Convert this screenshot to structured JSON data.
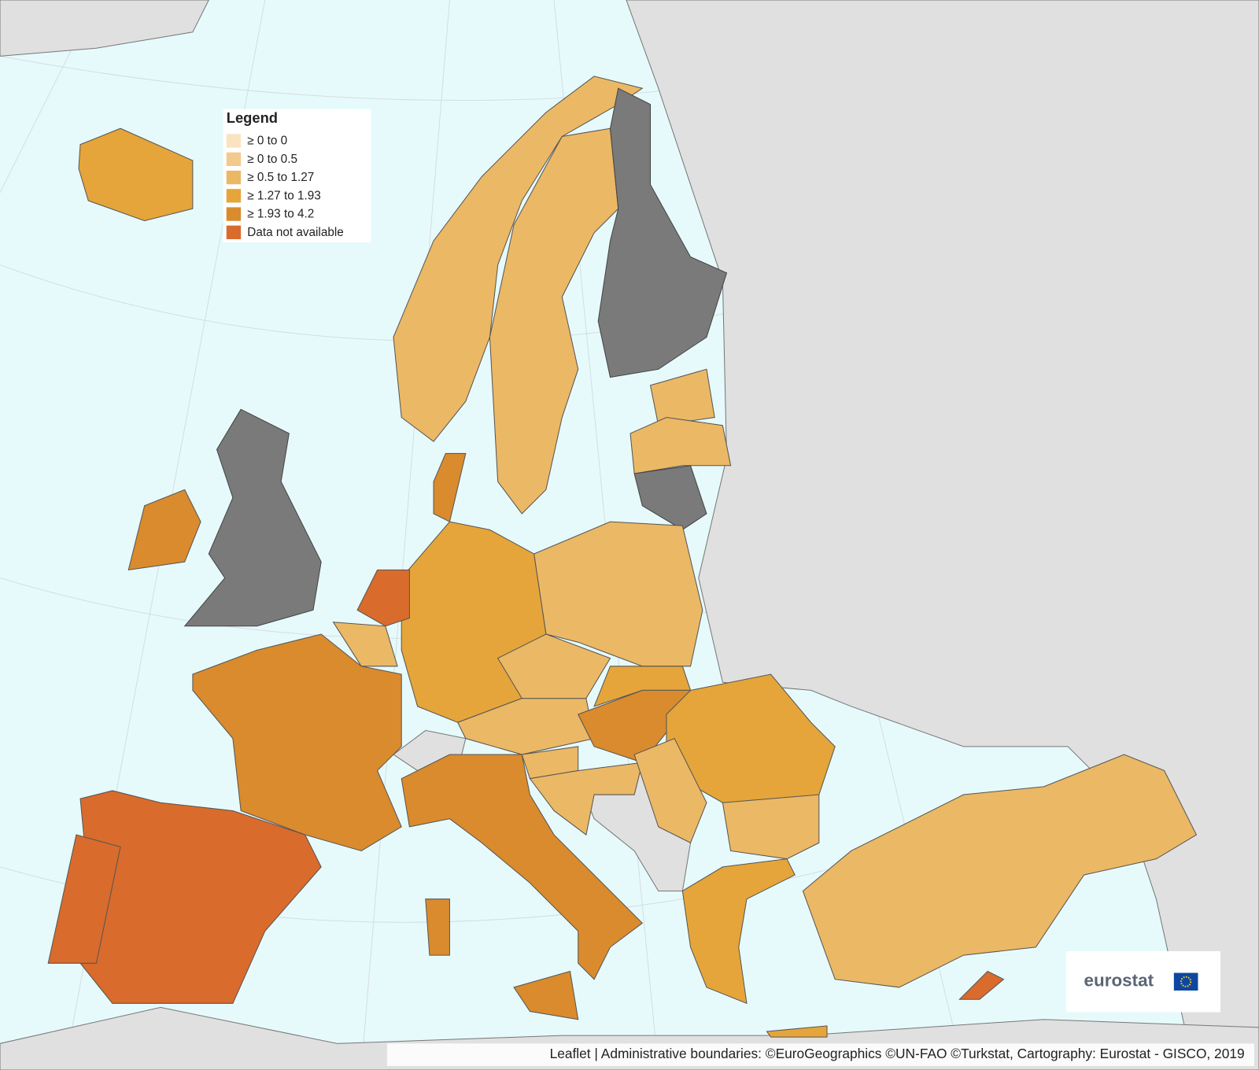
{
  "legend": {
    "title": "Legend",
    "items": [
      {
        "label": "≥ 0 to 0",
        "color": "#fbe3c0"
      },
      {
        "label": "≥ 0 to 0.5",
        "color": "#f3ca8e"
      },
      {
        "label": "≥ 0.5 to 1.27",
        "color": "#ebb865"
      },
      {
        "label": "≥ 1.27 to 1.93",
        "color": "#e5a53a"
      },
      {
        "label": "≥ 1.93 to 4.2",
        "color": "#d98b2e"
      },
      {
        "label": "Data not available",
        "color": "#d96b2d"
      }
    ]
  },
  "logo": "eurostat",
  "attribution": "Leaflet | Administrative boundaries: ©EuroGeographics ©UN-FAO ©Turkstat, Cartography: Eurostat - GISCO, 2019"
}
